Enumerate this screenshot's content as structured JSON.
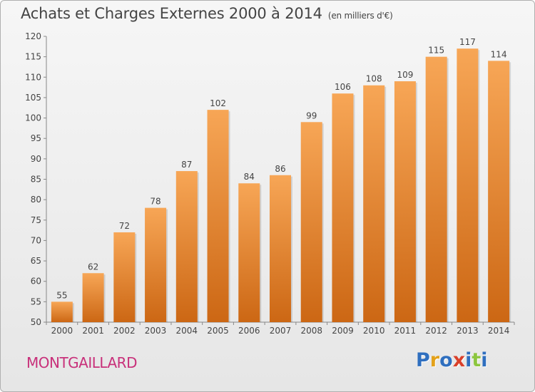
{
  "header": {
    "title": "Achats et Charges Externes 2000 à 2014",
    "subtitle": "(en milliers d'€)"
  },
  "footer": {
    "town": "MONTGAILLARD",
    "logo_letters": [
      "P",
      "r",
      "o",
      "x",
      "i",
      "t",
      "i"
    ]
  },
  "colors": {
    "bar_light": "#f7a656",
    "bar_dark": "#cc6714",
    "town": "#c8307a",
    "logo": [
      "#2f6fbf",
      "#e3a11a",
      "#2f6fbf",
      "#d9402a",
      "#2f6fbf",
      "#8cc63f",
      "#2f6fbf"
    ]
  },
  "chart_data": {
    "type": "bar",
    "categories": [
      "2000",
      "2001",
      "2002",
      "2003",
      "2004",
      "2005",
      "2006",
      "2007",
      "2008",
      "2009",
      "2010",
      "2011",
      "2012",
      "2013",
      "2014"
    ],
    "values": [
      55,
      62,
      72,
      78,
      87,
      102,
      84,
      86,
      99,
      106,
      108,
      109,
      115,
      117,
      114
    ],
    "ylim": [
      50,
      120
    ],
    "yticks": [
      50,
      55,
      60,
      65,
      70,
      75,
      80,
      85,
      90,
      95,
      100,
      105,
      110,
      115,
      120
    ],
    "grid": false,
    "data_labels": true
  }
}
